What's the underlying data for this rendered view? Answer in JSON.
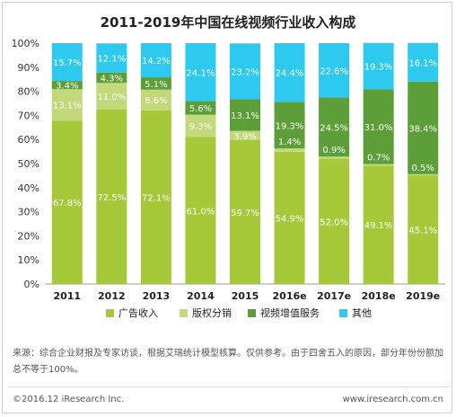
{
  "title": "2011-2019年中国在线视频行业收入构成",
  "colors": {
    "ad": "#a6c93a",
    "copyright": "#c2d979",
    "service": "#5c9e38",
    "other": "#2ec9ef"
  },
  "chart_data": {
    "type": "bar",
    "stacked": true,
    "percent": true,
    "categories": [
      "2011",
      "2012",
      "2013",
      "2014",
      "2015",
      "2016e",
      "2017e",
      "2018e",
      "2019e"
    ],
    "y_ticks": [
      "0%",
      "10%",
      "20%",
      "30%",
      "40%",
      "50%",
      "60%",
      "70%",
      "80%",
      "90%",
      "100%"
    ],
    "ylim": [
      0,
      100
    ],
    "series": [
      {
        "name": "广告收入",
        "color_key": "ad",
        "values": [
          67.8,
          72.5,
          72.1,
          61.0,
          59.7,
          54.9,
          52.0,
          49.1,
          45.1
        ]
      },
      {
        "name": "版权分销",
        "color_key": "copyright",
        "values": [
          13.1,
          11.0,
          8.6,
          9.3,
          3.9,
          1.4,
          0.9,
          0.7,
          0.5
        ]
      },
      {
        "name": "视频增值服务",
        "color_key": "service",
        "values": [
          3.4,
          4.3,
          5.1,
          5.6,
          13.1,
          19.3,
          24.5,
          31.0,
          38.4
        ]
      },
      {
        "name": "其他",
        "color_key": "other",
        "values": [
          15.7,
          12.1,
          14.2,
          24.1,
          23.2,
          24.4,
          22.6,
          19.3,
          16.1
        ]
      }
    ],
    "legend_position": "bottom"
  },
  "source_text": "来源：综合企业财报及专家访谈，根据艾瑞统计模型核算。仅供参考。由于四舍五入的原因，部分年份份额加总不等于100%。",
  "footer": {
    "copyright": "©2016.12 iResearch Inc.",
    "website": "www.iresearch.com.cn"
  }
}
